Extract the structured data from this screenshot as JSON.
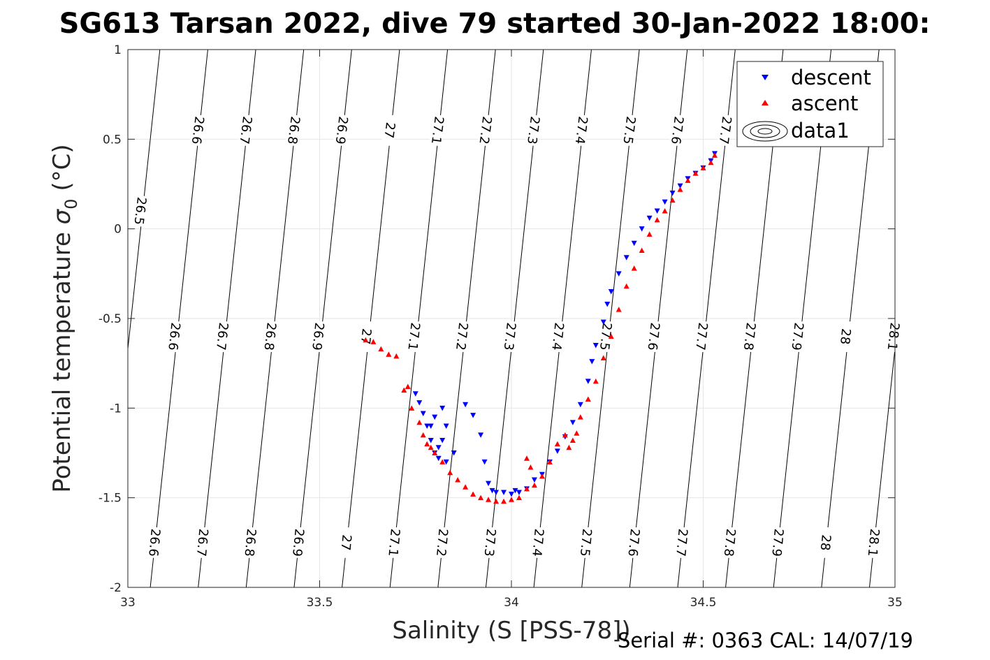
{
  "chart_data": {
    "type": "scatter",
    "title": "SG613 Tarsan 2022, dive 79 started 30-Jan-2022 18:00:",
    "xlabel": "Salinity (S [PSS-78])",
    "ylabel_text": "Potential temperature ",
    "ylabel_sym": "σ",
    "ylabel_sub": "0",
    "ylabel_unit": " (°C)",
    "xlim": [
      33,
      35
    ],
    "ylim": [
      -2,
      1
    ],
    "x_ticks": [
      33,
      33.5,
      34,
      34.5,
      35
    ],
    "x_tick_labels": [
      "33",
      "33.5",
      "34",
      "34.5",
      "35"
    ],
    "y_ticks": [
      -2,
      -1.5,
      -1,
      -0.5,
      0,
      0.5,
      1
    ],
    "y_tick_labels": [
      "-2",
      "-1.5",
      "-1",
      "-0.5",
      "0",
      "0.5",
      "1"
    ],
    "grid": true,
    "legend_position": "top-right",
    "legend": [
      {
        "label": "descent",
        "marker": "triangle-down",
        "color": "#0000ff"
      },
      {
        "label": "ascent",
        "marker": "triangle-up",
        "color": "#ff0000"
      },
      {
        "label": "data1",
        "marker": "contour"
      }
    ],
    "contours": {
      "levels": [
        26.5,
        26.6,
        26.7,
        26.8,
        26.9,
        27,
        27.1,
        27.2,
        27.3,
        27.4,
        27.5,
        27.6,
        27.7,
        27.8,
        27.9,
        28,
        28.1
      ],
      "labels": [
        "26.5",
        "26.6",
        "26.7",
        "26.8",
        "26.9",
        "27",
        "27.1",
        "27.2",
        "27.3",
        "27.4",
        "27.5",
        "27.6",
        "27.7",
        "27.8",
        "27.9",
        "28",
        "28.1"
      ],
      "label_rows": [
        {
          "theta": 0.1,
          "levels": [
            "26.5"
          ]
        },
        {
          "theta": 0.55,
          "levels": [
            "26.6",
            "26.7",
            "26.8",
            "26.9",
            "27",
            "27.1",
            "27.2",
            "27.3",
            "27.4",
            "27.5",
            "27.6",
            "27.7"
          ]
        },
        {
          "theta": -0.6,
          "levels": [
            "26.6",
            "26.7",
            "26.8",
            "26.9",
            "27",
            "27.1",
            "27.2",
            "27.3",
            "27.4",
            "27.5",
            "27.6",
            "27.7",
            "27.8",
            "27.9",
            "28",
            "28.1"
          ]
        },
        {
          "theta": -1.75,
          "levels": [
            "26.6",
            "26.7",
            "26.8",
            "26.9",
            "27",
            "27.1",
            "27.2",
            "27.3",
            "27.4",
            "27.5",
            "27.6",
            "27.7",
            "27.8",
            "27.9",
            "28",
            "28.1"
          ]
        }
      ]
    },
    "series": [
      {
        "name": "descent",
        "color": "#0000ff",
        "marker": "triangle-down",
        "x": [
          33.75,
          33.76,
          33.77,
          33.78,
          33.79,
          33.8,
          33.81,
          33.79,
          33.8,
          33.82,
          33.83,
          33.82,
          33.81,
          33.83,
          33.85,
          33.88,
          33.9,
          33.92,
          33.93,
          33.94,
          33.95,
          33.96,
          33.98,
          34.0,
          34.01,
          34.02,
          34.04,
          34.06,
          34.08,
          34.1,
          34.12,
          34.14,
          34.16,
          34.18,
          34.2,
          34.21,
          34.22,
          34.24,
          34.25,
          34.26,
          34.28,
          34.3,
          34.32,
          34.34,
          34.36,
          34.38,
          34.4,
          34.42,
          34.44,
          34.46,
          34.48,
          34.5,
          34.52,
          34.53
        ],
        "y": [
          -0.92,
          -0.97,
          -1.03,
          -1.1,
          -1.18,
          -1.25,
          -1.22,
          -1.1,
          -1.05,
          -1.0,
          -1.1,
          -1.18,
          -1.28,
          -1.3,
          -1.25,
          -0.98,
          -1.04,
          -1.15,
          -1.3,
          -1.42,
          -1.46,
          -1.47,
          -1.47,
          -1.48,
          -1.46,
          -1.47,
          -1.45,
          -1.4,
          -1.37,
          -1.3,
          -1.24,
          -1.16,
          -1.08,
          -0.98,
          -0.85,
          -0.74,
          -0.65,
          -0.52,
          -0.42,
          -0.35,
          -0.25,
          -0.16,
          -0.08,
          0.0,
          0.06,
          0.1,
          0.15,
          0.2,
          0.24,
          0.28,
          0.31,
          0.34,
          0.38,
          0.42
        ]
      },
      {
        "name": "ascent",
        "color": "#ff0000",
        "marker": "triangle-up",
        "x": [
          33.62,
          33.64,
          33.66,
          33.68,
          33.7,
          33.72,
          33.73,
          33.74,
          33.76,
          33.77,
          33.78,
          33.79,
          33.8,
          33.82,
          33.84,
          33.86,
          33.88,
          33.9,
          33.92,
          33.94,
          33.96,
          33.98,
          34.0,
          34.02,
          34.04,
          34.04,
          34.05,
          34.06,
          34.08,
          34.1,
          34.12,
          34.14,
          34.15,
          34.16,
          34.17,
          34.18,
          34.2,
          34.22,
          34.24,
          34.26,
          34.28,
          34.3,
          34.32,
          34.34,
          34.36,
          34.38,
          34.4,
          34.42,
          34.44,
          34.46,
          34.48,
          34.5,
          34.52,
          34.53
        ],
        "y": [
          -0.62,
          -0.63,
          -0.67,
          -0.7,
          -0.71,
          -0.9,
          -0.88,
          -1.0,
          -1.08,
          -1.15,
          -1.2,
          -1.22,
          -1.25,
          -1.3,
          -1.36,
          -1.4,
          -1.44,
          -1.48,
          -1.5,
          -1.51,
          -1.52,
          -1.52,
          -1.51,
          -1.5,
          -1.45,
          -1.28,
          -1.33,
          -1.43,
          -1.38,
          -1.3,
          -1.2,
          -1.15,
          -1.22,
          -1.18,
          -1.14,
          -1.05,
          -0.95,
          -0.85,
          -0.72,
          -0.6,
          -0.45,
          -0.32,
          -0.22,
          -0.12,
          -0.03,
          0.05,
          0.1,
          0.16,
          0.22,
          0.27,
          0.31,
          0.34,
          0.37,
          0.41
        ]
      }
    ]
  },
  "footer": "Serial #: 0363  CAL: 14/07/19"
}
